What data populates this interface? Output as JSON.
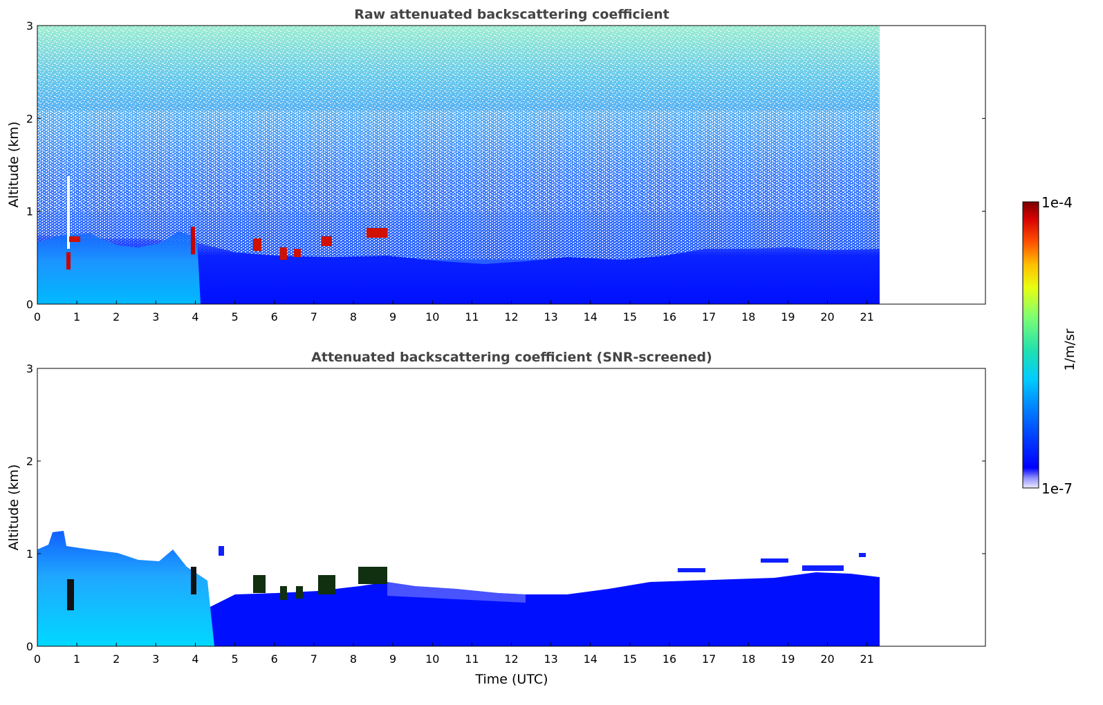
{
  "chart_data": [
    {
      "type": "heatmap",
      "title": "Raw attenuated backscattering coefficient",
      "xlabel": "",
      "ylabel": "Altitude (km)",
      "xlim": [
        0,
        24
      ],
      "ylim": [
        0,
        3
      ],
      "x_ticks": [
        "0",
        "1",
        "2",
        "3",
        "4",
        "5",
        "6",
        "7",
        "8",
        "9",
        "10",
        "11",
        "12",
        "13",
        "14",
        "15",
        "16",
        "17",
        "18",
        "19",
        "20",
        "21"
      ],
      "y_ticks": [
        "0",
        "1",
        "2",
        "3"
      ],
      "data_extent_x": [
        0,
        21.3
      ],
      "colorscale": "jet",
      "description_series": [
        {
          "feature": "aerosol layer",
          "time_range": [
            0,
            4.8
          ],
          "altitude_top_km": 0.6
        },
        {
          "feature": "boundary layer",
          "time_range": [
            4.8,
            21.3
          ],
          "altitude_top_km": 0.5
        },
        {
          "feature": "cloud base",
          "time_range": [
            0.7,
            0.9
          ],
          "altitude_km": 0.5
        },
        {
          "feature": "cloud base",
          "time_range": [
            3.9,
            4.1
          ],
          "altitude_km": 0.65
        },
        {
          "feature": "cloud base",
          "time_range": [
            5.5,
            8.8
          ],
          "altitude_km": 0.65
        }
      ]
    },
    {
      "type": "heatmap",
      "title": "Attenuated backscattering coefficient (SNR-screened)",
      "xlabel": "Time (UTC)",
      "ylabel": "Altitude (km)",
      "xlim": [
        0,
        24
      ],
      "ylim": [
        0,
        3
      ],
      "x_ticks": [
        "0",
        "1",
        "2",
        "3",
        "4",
        "5",
        "6",
        "7",
        "8",
        "9",
        "10",
        "11",
        "12",
        "13",
        "14",
        "15",
        "16",
        "17",
        "18",
        "19",
        "20",
        "21"
      ],
      "y_ticks": [
        "0",
        "1",
        "2",
        "3"
      ],
      "data_extent_x": [
        0,
        21.3
      ],
      "colorscale": "jet"
    }
  ],
  "colorbar": {
    "max_label": "1e-4",
    "min_label": "1e-7",
    "unit_label": "1/m/sr",
    "scale": "log"
  }
}
